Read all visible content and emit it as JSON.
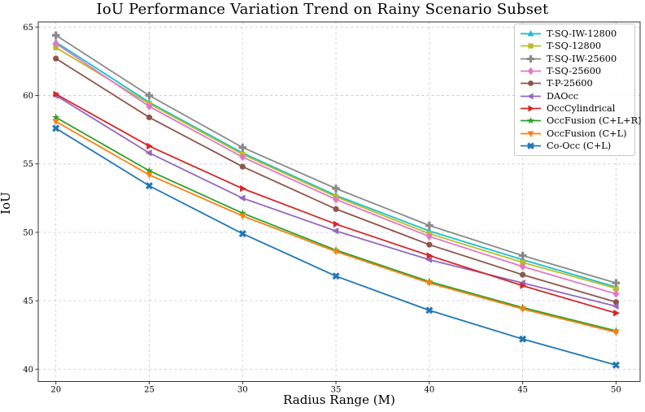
{
  "title": "IoU Performance Variation Trend on Rainy Scenario Subset",
  "chart_data": {
    "type": "line",
    "title": "IoU Performance Variation Trend on Rainy Scenario Subset",
    "xlabel": "Radius Range (M)",
    "ylabel": "IoU",
    "x": [
      20,
      25,
      30,
      35,
      40,
      45,
      50
    ],
    "xticks": [
      "20",
      "25",
      "30",
      "35",
      "40",
      "45",
      "50"
    ],
    "yticks": [
      "40",
      "45",
      "50",
      "55",
      "60",
      "65"
    ],
    "xlim": [
      19.0,
      51.3
    ],
    "ylim": [
      39.1,
      65.4
    ],
    "grid": true,
    "grid_style": "dashed",
    "legend_position": "upper right",
    "series": [
      {
        "name": "T-SQ-IW-12800",
        "color": "#17becf",
        "marker": "triangle-up",
        "values": [
          63.9,
          59.5,
          55.8,
          52.7,
          50.1,
          48.0,
          46.0
        ]
      },
      {
        "name": "T-SQ-12800",
        "color": "#bcbd22",
        "marker": "square",
        "values": [
          63.5,
          59.4,
          55.7,
          52.6,
          49.9,
          47.8,
          45.9
        ]
      },
      {
        "name": "T-SQ-IW-25600",
        "color": "#8a8a8a",
        "marker": "plus",
        "values": [
          64.4,
          60.0,
          56.2,
          53.2,
          50.5,
          48.3,
          46.3
        ]
      },
      {
        "name": "T-SQ-25600",
        "color": "#e377c2",
        "marker": "diamond",
        "values": [
          63.8,
          59.2,
          55.5,
          52.4,
          49.7,
          47.5,
          45.5
        ]
      },
      {
        "name": "T-P-25600",
        "color": "#8c564b",
        "marker": "circle",
        "values": [
          62.7,
          58.4,
          54.8,
          51.7,
          49.1,
          46.9,
          44.9
        ]
      },
      {
        "name": "DAOcc",
        "color": "#9467bd",
        "marker": "triangle-left",
        "values": [
          60.0,
          55.8,
          52.5,
          50.1,
          48.0,
          46.3,
          44.6
        ]
      },
      {
        "name": "OccCylindrical",
        "color": "#d62728",
        "marker": "triangle-right",
        "values": [
          60.1,
          56.3,
          53.2,
          50.6,
          48.3,
          46.1,
          44.1
        ]
      },
      {
        "name": "OccFusion (C+L+R)",
        "color": "#2ca02c",
        "marker": "star",
        "values": [
          58.4,
          54.5,
          51.4,
          48.7,
          46.4,
          44.5,
          42.8
        ]
      },
      {
        "name": "OccFusion (C+L)",
        "color": "#ff7f0e",
        "marker": "triangle-down",
        "values": [
          58.1,
          54.2,
          51.2,
          48.6,
          46.3,
          44.4,
          42.7
        ]
      },
      {
        "name": "Co-Occ (C+L)",
        "color": "#1f77b4",
        "marker": "x",
        "values": [
          57.6,
          53.4,
          49.9,
          46.8,
          44.3,
          42.2,
          40.3
        ]
      }
    ],
    "style": {
      "grid_color": "#cccccc",
      "spine_color": "#333333",
      "tick_label_color": "#000000"
    }
  }
}
